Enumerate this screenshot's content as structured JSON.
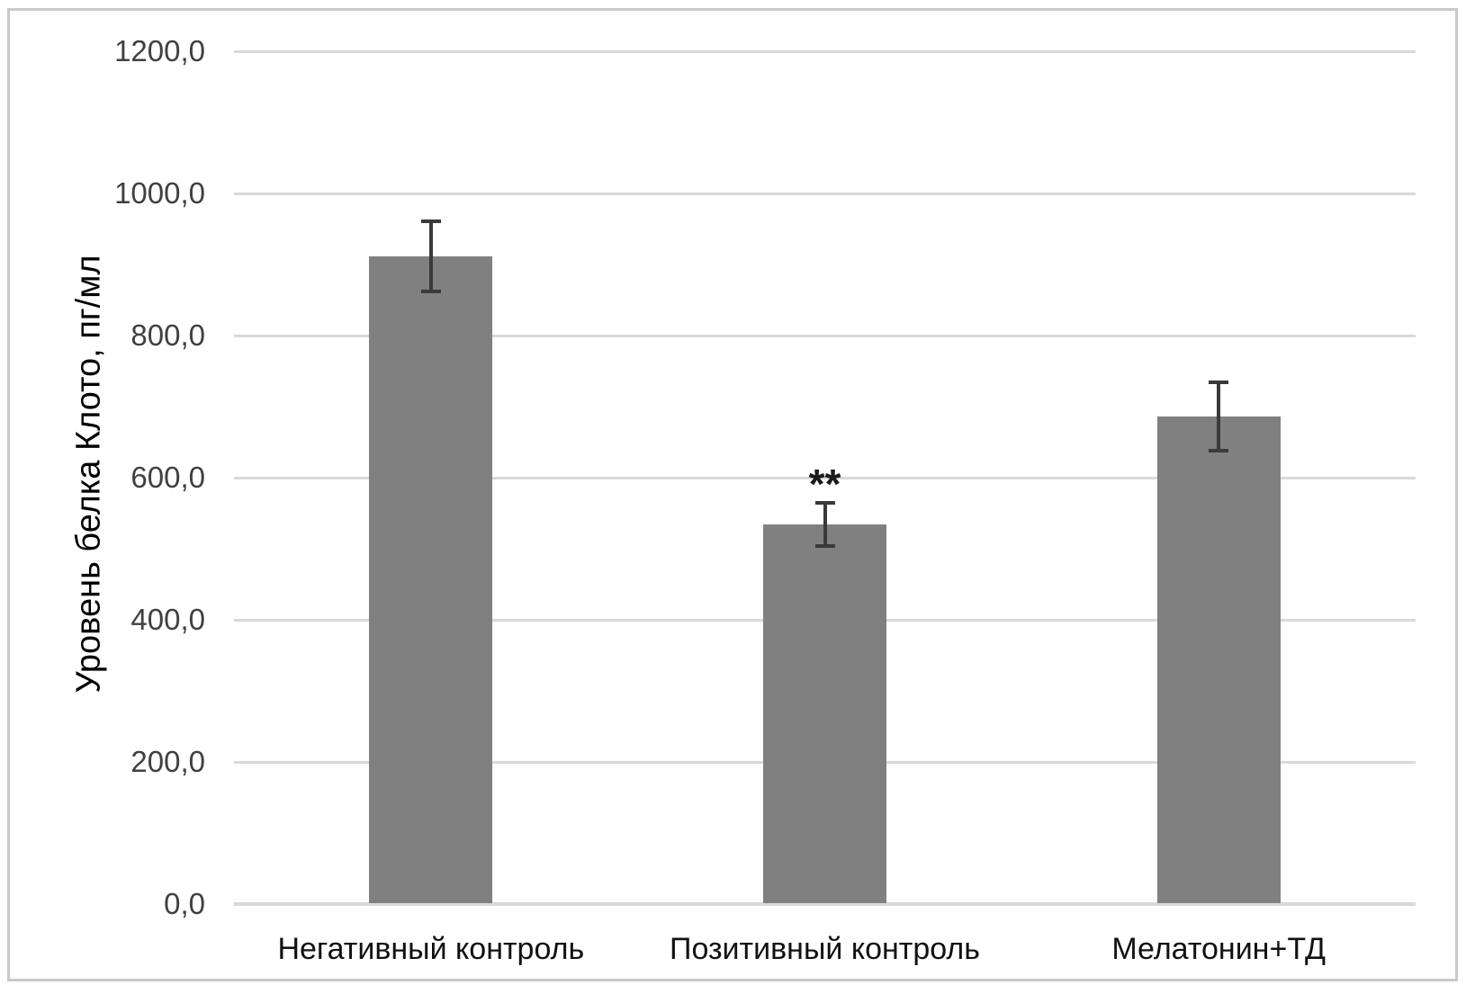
{
  "chart_data": {
    "type": "bar",
    "title": "",
    "categories": [
      "Негативный контроль",
      "Позитивный контроль",
      "Мелатонин+ТД"
    ],
    "values": [
      911,
      534,
      686
    ],
    "errors": [
      52,
      33,
      51
    ],
    "annotations": [
      "",
      "**",
      ""
    ],
    "ylabel": "Уровень белка Клото, пг/мл",
    "xlabel": "",
    "ylim": [
      0,
      1200
    ],
    "ytick_step": 200,
    "ytick_labels": [
      "0,0",
      "200,0",
      "400,0",
      "600,0",
      "800,0",
      "1000,0",
      "1200,0"
    ],
    "grid": true,
    "legend": false,
    "significance_note": "** above Позитивный контроль bar"
  },
  "colors": {
    "bar_fill": "#808080",
    "gridline": "#d9d9d9",
    "axis_line": "#d9d9d9",
    "tick_label": "#404040",
    "category_label": "#111111",
    "error_bar": "#3a3a3a",
    "frame_border": "#c9c9c9",
    "background": "#ffffff"
  }
}
